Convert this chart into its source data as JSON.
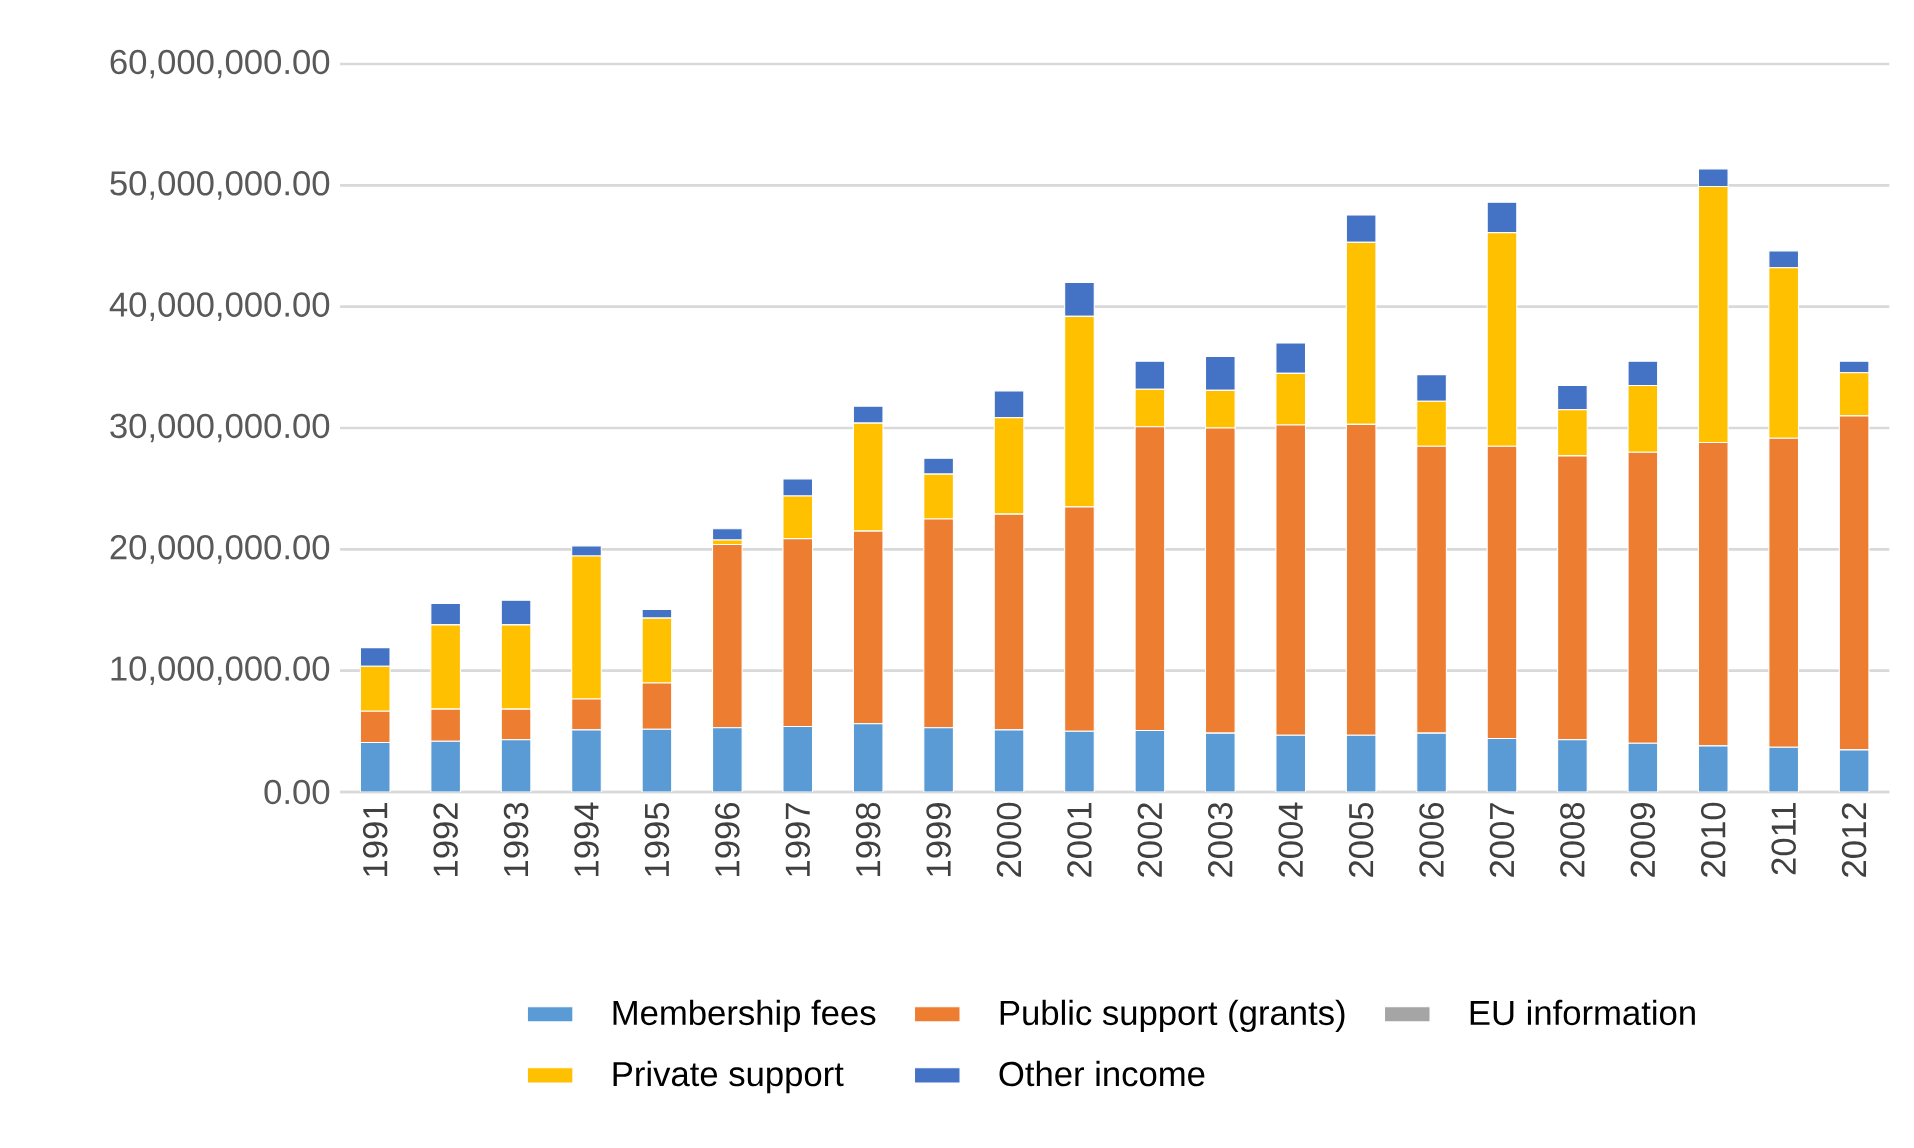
{
  "chart_data": {
    "type": "bar",
    "stacked": true,
    "categories": [
      "1991",
      "1992",
      "1993",
      "1994",
      "1995",
      "1996",
      "1997",
      "1998",
      "1999",
      "2000",
      "2001",
      "2002",
      "2003",
      "2004",
      "2005",
      "2006",
      "2007",
      "2008",
      "2009",
      "2010",
      "2011",
      "2012"
    ],
    "series": [
      {
        "name": "Membership fees",
        "color": "#5b9bd5",
        "values": [
          4080000,
          4180000,
          4300000,
          5120000,
          5170000,
          5290000,
          5400000,
          5620000,
          5290000,
          5120000,
          5010000,
          5070000,
          4850000,
          4680000,
          4680000,
          4850000,
          4400000,
          4300000,
          4020000,
          3800000,
          3690000,
          3470000
        ]
      },
      {
        "name": "Public support (grants)",
        "color": "#ed7d31",
        "values": [
          2580000,
          2650000,
          2530000,
          2540000,
          3810000,
          15100000,
          15480000,
          15880000,
          17210000,
          17780000,
          18490000,
          25030000,
          25150000,
          25570000,
          25620000,
          23650000,
          24100000,
          23400000,
          23980000,
          25000000,
          25460000,
          27530000
        ]
      },
      {
        "name": "EU information",
        "color": "#a5a5a5",
        "values": [
          0,
          0,
          0,
          0,
          0,
          0,
          0,
          0,
          0,
          0,
          0,
          0,
          0,
          0,
          0,
          0,
          0,
          0,
          0,
          0,
          0,
          0
        ]
      },
      {
        "name": "Private support",
        "color": "#ffc000",
        "values": [
          3700000,
          6940000,
          6940000,
          11790000,
          5350000,
          380000,
          3520000,
          8900000,
          3700000,
          7950000,
          15700000,
          3100000,
          3100000,
          4250000,
          15000000,
          3700000,
          17600000,
          3800000,
          5500000,
          21100000,
          14050000,
          3550000
        ]
      },
      {
        "name": "Other income",
        "color": "#4472c4",
        "values": [
          1540000,
          1770000,
          2030000,
          830000,
          710000,
          930000,
          1400000,
          1400000,
          1300000,
          2210000,
          2800000,
          2300000,
          2800000,
          2500000,
          2250000,
          2200000,
          2500000,
          2000000,
          2000000,
          1450000,
          1400000,
          950000
        ]
      }
    ],
    "ylim": [
      0,
      60000000
    ],
    "yticks": [
      {
        "value": 0,
        "label": "0.00"
      },
      {
        "value": 10000000,
        "label": "10,000,000.00"
      },
      {
        "value": 20000000,
        "label": "20,000,000.00"
      },
      {
        "value": 30000000,
        "label": "30,000,000.00"
      },
      {
        "value": 40000000,
        "label": "40,000,000.00"
      },
      {
        "value": 50000000,
        "label": "50,000,000.00"
      },
      {
        "value": 60000000,
        "label": "60,000,000.00"
      }
    ],
    "grid": "y",
    "legend": "bottom"
  }
}
